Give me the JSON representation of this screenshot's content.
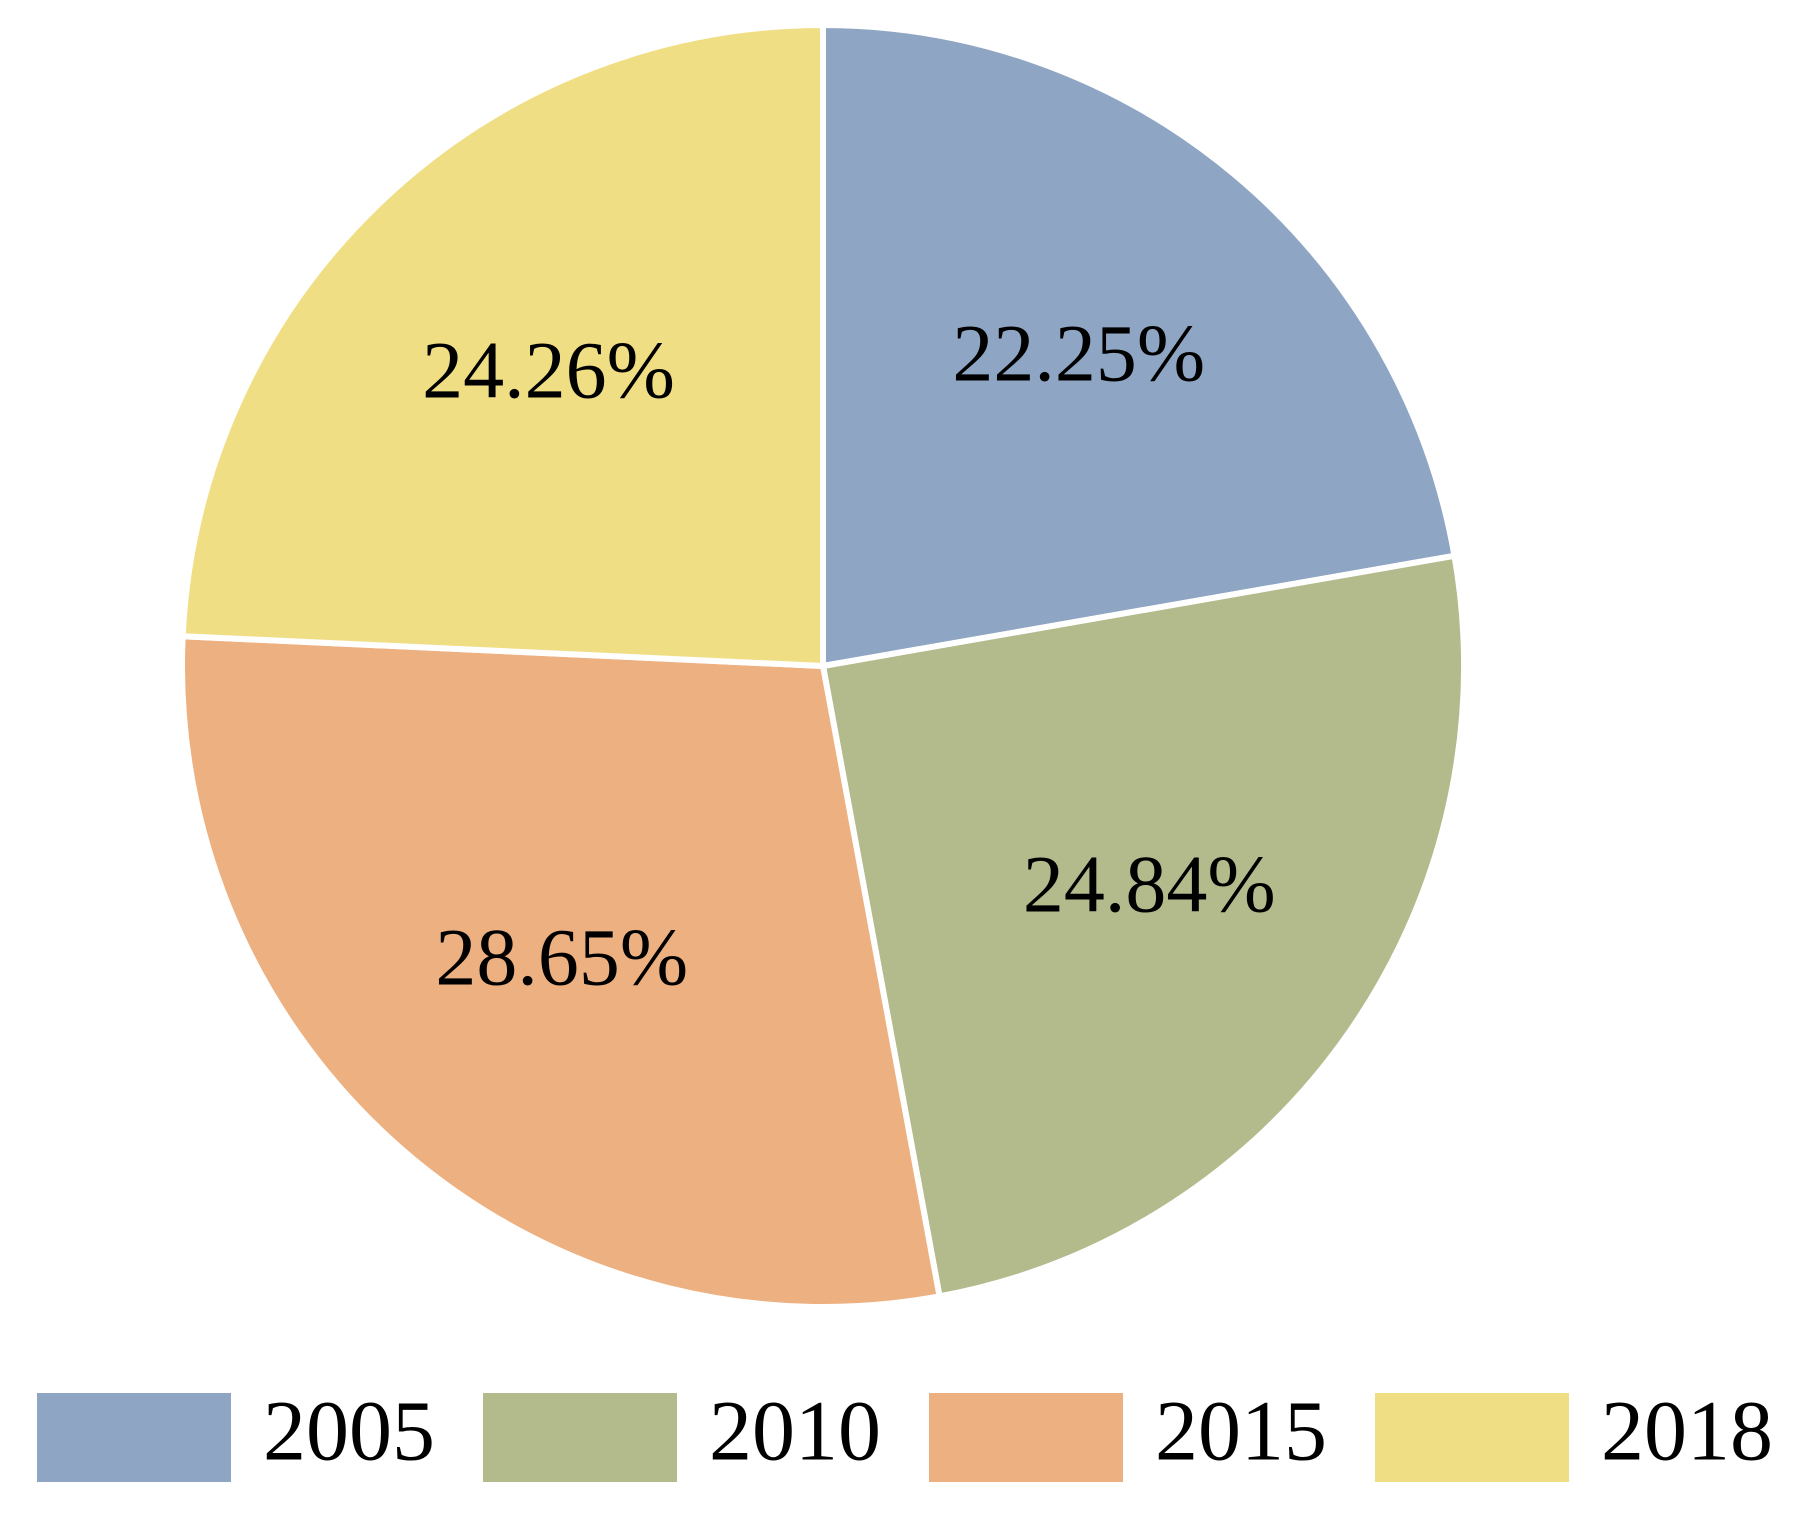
{
  "chart_data": {
    "type": "pie",
    "categories": [
      "2005",
      "2010",
      "2015",
      "2018"
    ],
    "values": [
      22.25,
      24.84,
      28.65,
      24.26
    ],
    "value_labels": [
      "22.25%",
      "24.84%",
      "28.65%",
      "24.26%"
    ],
    "colors": [
      "#8fa5c4",
      "#b3ba8c",
      "#edb081",
      "#f0de84"
    ],
    "legend": "bottom"
  }
}
